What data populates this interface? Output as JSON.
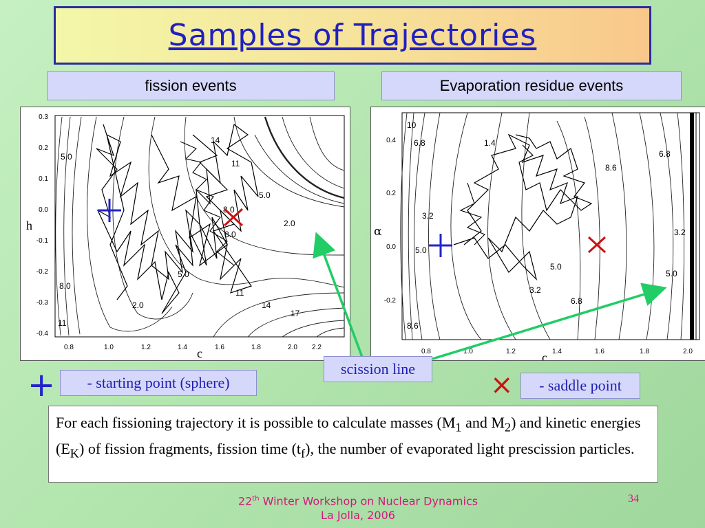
{
  "slide": {
    "title": "Samples of Trajectories",
    "left_header": "fission events",
    "right_header": "Evaporation residue events",
    "legend_start_symbol": "+",
    "legend_start": "- starting point (sphere)",
    "legend_saddle_symbol": "×",
    "legend_saddle": "- saddle point",
    "scission_label": "scission line",
    "description": {
      "t1": "For each fissioning trajectory it is possible to calculate masses (M",
      "s1": "1",
      "t2": " and M",
      "s2": "2",
      "t3": ") and kinetic energies (E",
      "s3": "K",
      "t4": ") of fission fragments, fission time (t",
      "s4": "f",
      "t5": "), the number of evaporated light prescission particles."
    },
    "footer_sup": "th",
    "footer_num": "22",
    "footer_line1_rest": " Winter Workshop on Nuclear Dynamics",
    "footer_line2": "La Jolla, 2006",
    "page_number": "34"
  },
  "colors": {
    "title": "#2020c0",
    "start_marker": "#2222cc",
    "saddle_marker": "#cc1111",
    "arrow": "#22cc66",
    "footer": "#d01a7a"
  },
  "left_plot": {
    "ylabel": "h",
    "xlabel": "c",
    "xticks": [
      "0.8",
      "1.0",
      "1.2",
      "1.4",
      "1.6",
      "1.8",
      "2.0",
      "2.2"
    ],
    "yticks": [
      "0.3",
      "0.2",
      "0.1",
      "0.0",
      "-0.1",
      "-0.2",
      "-0.3",
      "-0.4"
    ],
    "contour_labels": [
      "5.0",
      "14",
      "11",
      "5.0",
      "8.0",
      "2.0",
      "8.0",
      "5.0",
      "2.0",
      "11",
      "11",
      "14",
      "17",
      "8.0"
    ]
  },
  "right_plot": {
    "ylabel": "α",
    "xlabel": "c",
    "xticks": [
      "0.8",
      "1.0",
      "1.2",
      "1.4",
      "1.6",
      "1.8",
      "2.0"
    ],
    "yticks": [
      "0.4",
      "0.2",
      "0.0",
      "-0.2"
    ],
    "contour_labels": [
      "10",
      "6.8",
      "1.4",
      "8.6",
      "6.8",
      "3.2",
      "5.0",
      "5.0",
      "3.2",
      "6.8",
      "5.0",
      "3.2",
      "8.6"
    ]
  }
}
